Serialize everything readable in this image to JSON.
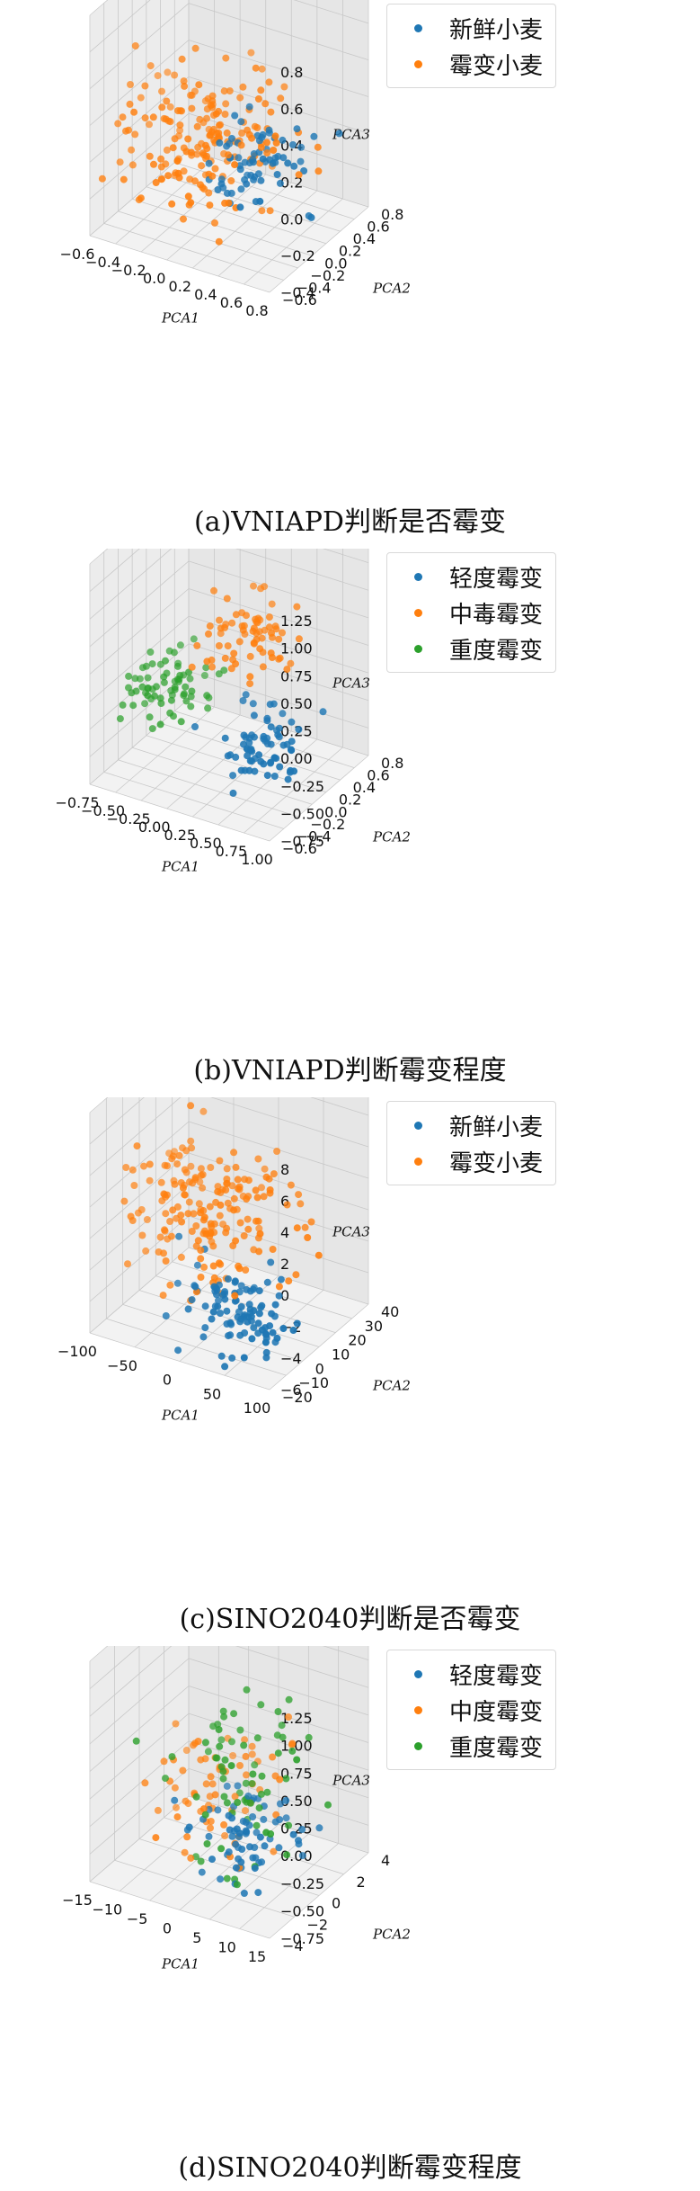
{
  "chart_data": [
    {
      "type": "scatter",
      "title": "",
      "caption": "(a)VNIAPD判断是否霉变",
      "xlabel": "PCA1",
      "ylabel": "PCA2",
      "zlabel": "PCA3",
      "x_ticks": [
        "−0.6",
        "−0.4",
        "−0.2",
        "0.0",
        "0.2",
        "0.4",
        "0.6",
        "0.8"
      ],
      "y_ticks": [
        "−0.6",
        "−0.4",
        "−0.2",
        "0.0",
        "0.2",
        "0.4",
        "0.6",
        "0.8"
      ],
      "z_ticks": [
        "0.8",
        "0.6",
        "0.4",
        "0.2",
        "0.0",
        "−0.2",
        "−0.4"
      ],
      "xlim": [
        -0.6,
        0.8
      ],
      "ylim": [
        -0.6,
        0.8
      ],
      "zlim": [
        -0.4,
        0.8
      ],
      "legend_placement": "top-right",
      "grid": true,
      "series": [
        {
          "name": "新鲜小麦",
          "color": "#1f77b4",
          "center": [
            0.35,
            0.05,
            0.0
          ],
          "spread": [
            0.18,
            0.2,
            0.12
          ],
          "n": 70,
          "seed": 11
        },
        {
          "name": "霉变小麦",
          "color": "#ff7f0e",
          "center": [
            -0.1,
            0.0,
            0.05
          ],
          "spread": [
            0.32,
            0.3,
            0.18
          ],
          "n": 190,
          "seed": 23
        }
      ]
    },
    {
      "type": "scatter",
      "title": "",
      "caption": "(b)VNIAPD判断霉变程度",
      "xlabel": "PCA1",
      "ylabel": "PCA2",
      "zlabel": "PCA3",
      "x_ticks": [
        "−0.75",
        "−0.50",
        "−0.25",
        "0.00",
        "0.25",
        "0.50",
        "0.75",
        "1.00"
      ],
      "y_ticks": [
        "−0.6",
        "−0.4",
        "−0.2",
        "0.0",
        "0.2",
        "0.4",
        "0.6",
        "0.8"
      ],
      "z_ticks": [
        "1.25",
        "1.00",
        "0.75",
        "0.50",
        "0.25",
        "0.00",
        "−0.25",
        "−0.50",
        "−0.75"
      ],
      "xlim": [
        -0.75,
        1.0
      ],
      "ylim": [
        -0.6,
        0.8
      ],
      "zlim": [
        -0.75,
        1.25
      ],
      "legend_placement": "top-right",
      "grid": true,
      "series": [
        {
          "name": "轻度霉变",
          "color": "#1f77b4",
          "center": [
            0.55,
            -0.1,
            -0.3
          ],
          "spread": [
            0.18,
            0.2,
            0.15
          ],
          "n": 70,
          "seed": 31
        },
        {
          "name": "中毒霉变",
          "color": "#ff7f0e",
          "center": [
            0.25,
            0.3,
            0.35
          ],
          "spread": [
            0.2,
            0.2,
            0.15
          ],
          "n": 70,
          "seed": 37
        },
        {
          "name": "重度霉变",
          "color": "#2ca02c",
          "center": [
            -0.45,
            0.1,
            -0.15
          ],
          "spread": [
            0.2,
            0.2,
            0.12
          ],
          "n": 70,
          "seed": 41
        }
      ]
    },
    {
      "type": "scatter",
      "title": "",
      "caption": "(c)SINO2040判断是否霉变",
      "xlabel": "PCA1",
      "ylabel": "PCA2",
      "zlabel": "PCA3",
      "x_ticks": [
        "−100",
        "−50",
        "0",
        "50",
        "100"
      ],
      "y_ticks": [
        "−20",
        "−10",
        "0",
        "10",
        "20",
        "30",
        "40"
      ],
      "z_ticks": [
        "8",
        "6",
        "4",
        "2",
        "0",
        "−2",
        "−4",
        "−6"
      ],
      "xlim": [
        -100,
        100
      ],
      "ylim": [
        -20,
        40
      ],
      "zlim": [
        -6,
        8
      ],
      "legend_placement": "top-right",
      "grid": true,
      "series": [
        {
          "name": "新鲜小麦",
          "color": "#1f77b4",
          "center": [
            40,
            -5,
            -3.5
          ],
          "spread": [
            35,
            8,
            1.2
          ],
          "n": 100,
          "seed": 53
        },
        {
          "name": "霉变小麦",
          "color": "#ff7f0e",
          "center": [
            -30,
            10,
            0.5
          ],
          "spread": [
            45,
            10,
            2.0
          ],
          "n": 190,
          "seed": 59
        }
      ]
    },
    {
      "type": "scatter",
      "title": "",
      "caption": "(d)SINO2040判断霉变程度",
      "xlabel": "PCA1",
      "ylabel": "PCA2",
      "zlabel": "PCA3",
      "x_ticks": [
        "−15",
        "−10",
        "−5",
        "0",
        "5",
        "10",
        "15"
      ],
      "y_ticks": [
        "−4",
        "−2",
        "0",
        "2",
        "4"
      ],
      "z_ticks": [
        "1.25",
        "1.00",
        "0.75",
        "0.50",
        "0.25",
        "0.00",
        "−0.25",
        "−0.50",
        "−0.75"
      ],
      "xlim": [
        -15,
        15
      ],
      "ylim": [
        -4,
        4
      ],
      "zlim": [
        -0.75,
        1.25
      ],
      "legend_placement": "top-right",
      "grid": true,
      "series": [
        {
          "name": "轻度霉变",
          "color": "#1f77b4",
          "center": [
            4,
            -0.5,
            -0.35
          ],
          "spread": [
            4.5,
            1.4,
            0.25
          ],
          "n": 70,
          "seed": 61
        },
        {
          "name": "中度霉变",
          "color": "#ff7f0e",
          "center": [
            -4,
            0.5,
            -0.2
          ],
          "spread": [
            4.5,
            1.6,
            0.3
          ],
          "n": 70,
          "seed": 67
        },
        {
          "name": "重度霉变",
          "color": "#2ca02c",
          "center": [
            2,
            0.0,
            0.05
          ],
          "spread": [
            5,
            1.6,
            0.45
          ],
          "n": 70,
          "seed": 71
        }
      ]
    }
  ]
}
